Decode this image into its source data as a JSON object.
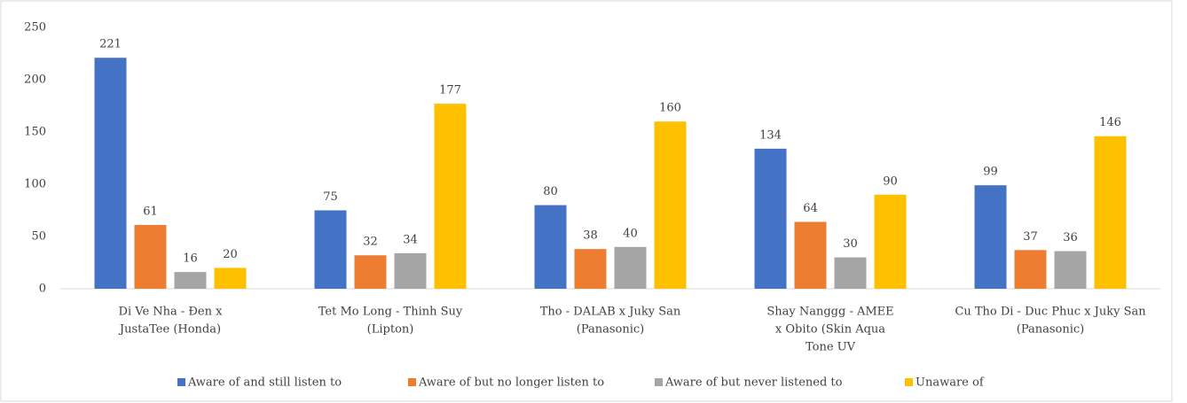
{
  "chart_data": {
    "type": "bar",
    "categories": [
      [
        "Di Ve Nha - Đen x",
        "JustaTee (Honda)"
      ],
      [
        "Tet Mo Long - Thinh Suy",
        "(Lipton)"
      ],
      [
        "Tho - DALAB x Juky San",
        "(Panasonic)"
      ],
      [
        "Shay Nanggg - AMEE",
        "x Obito (Skin Aqua",
        "Tone UV"
      ],
      [
        "Cu Tho Di - Duc Phuc x Juky San",
        "(Panasonic)"
      ]
    ],
    "series": [
      {
        "name": "Aware of and still listen to",
        "color": "#4472c4",
        "values": [
          221,
          75,
          80,
          134,
          99
        ]
      },
      {
        "name": "Aware of but no longer listen to",
        "color": "#ed7d31",
        "values": [
          61,
          32,
          38,
          64,
          37
        ]
      },
      {
        "name": "Aware of but never listened to",
        "color": "#a5a5a5",
        "values": [
          16,
          34,
          40,
          30,
          36
        ]
      },
      {
        "name": "Unaware of",
        "color": "#ffc000",
        "values": [
          20,
          177,
          160,
          90,
          146
        ]
      }
    ],
    "ylim": [
      0,
      250
    ],
    "yticks": [
      0,
      50,
      100,
      150,
      200,
      250
    ],
    "grid": false,
    "legend": "bottom"
  }
}
